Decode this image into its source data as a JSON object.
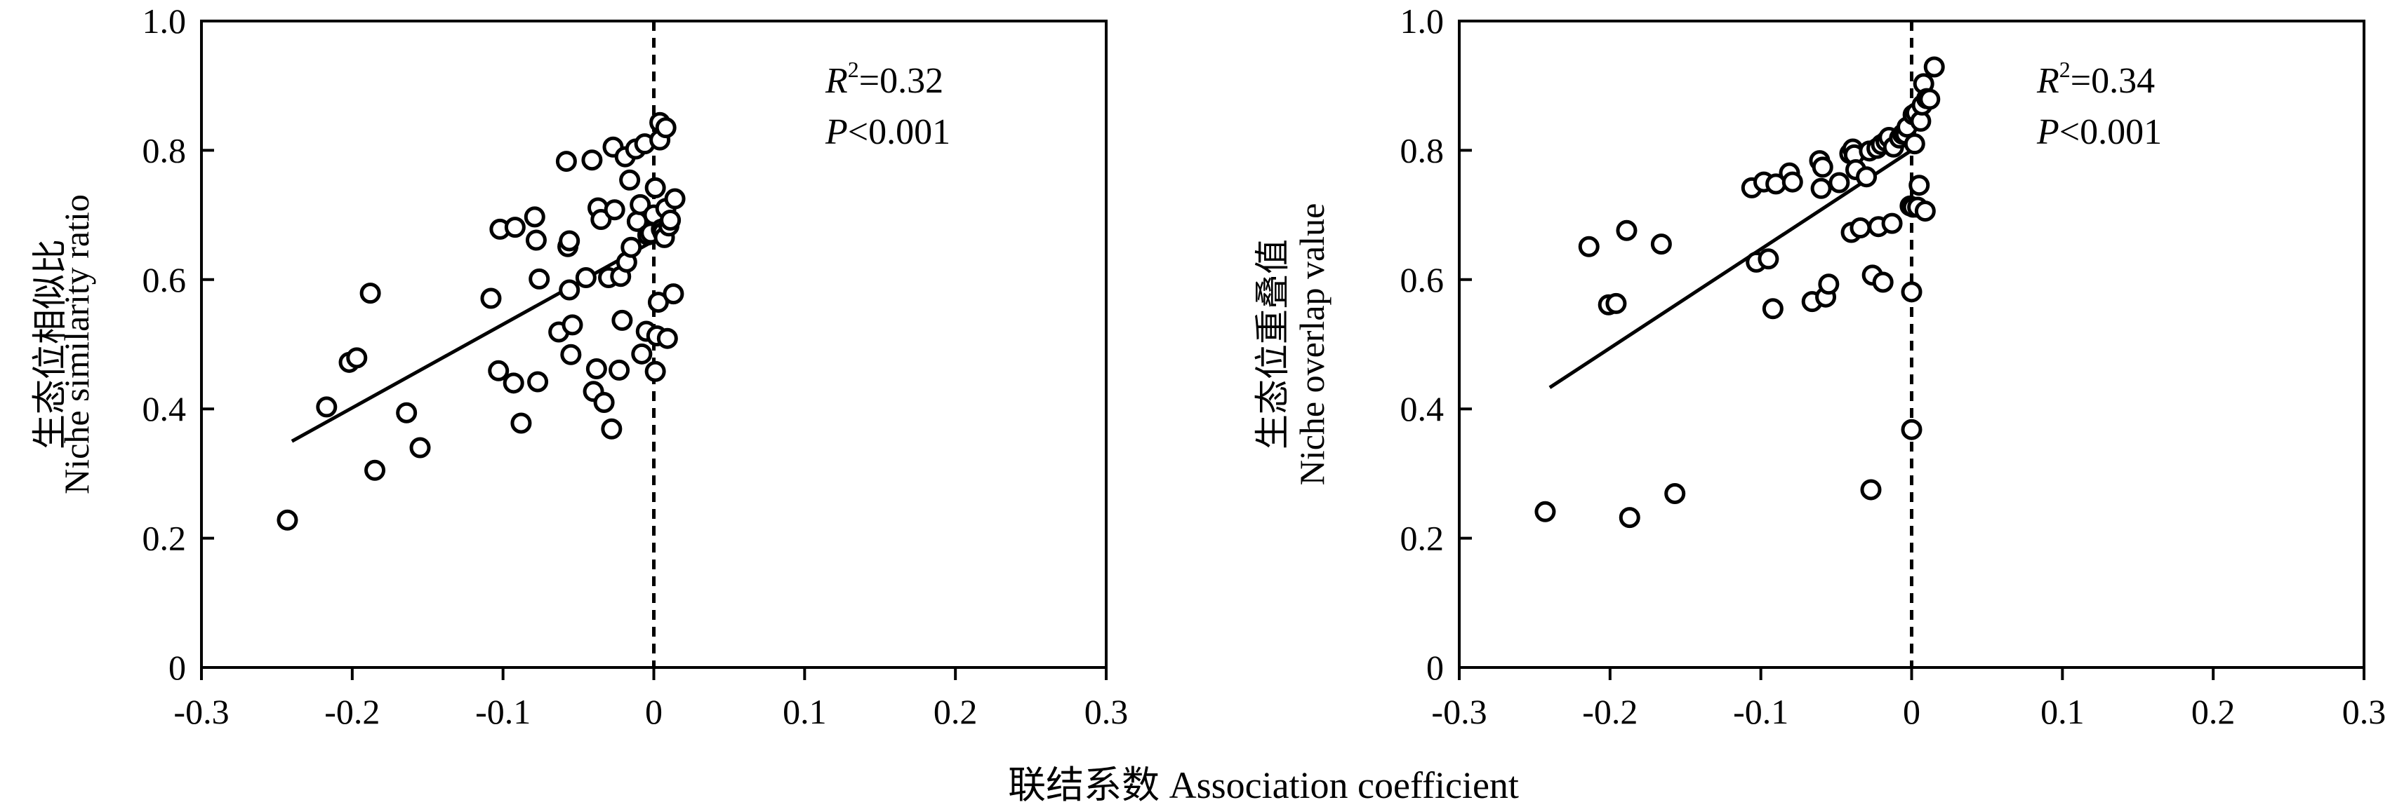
{
  "figure": {
    "xlabel": "联结系数 Association coefficient"
  },
  "chart_data": [
    {
      "type": "scatter",
      "ylabel_cn": "生态位相似比",
      "ylabel_en": "Niche similarity ratio",
      "xlim": [
        -0.3,
        0.3
      ],
      "ylim": [
        0,
        1.0
      ],
      "xticks": [
        "-0.3",
        "-0.2",
        "-0.1",
        "0",
        "0.1",
        "0.2",
        "0.3"
      ],
      "yticks": [
        "0",
        "0.2",
        "0.4",
        "0.6",
        "0.8",
        "1.0"
      ],
      "stats": {
        "r2_label": "R",
        "r2_sup": "2",
        "r2_value": "=0.32",
        "p_label": "P",
        "p_value": "<0.001"
      },
      "fit": {
        "x": [
          -0.24,
          0.0
        ],
        "y": [
          0.35,
          0.66
        ]
      },
      "points": [
        [
          -0.243,
          0.228
        ],
        [
          -0.217,
          0.403
        ],
        [
          -0.202,
          0.472
        ],
        [
          -0.197,
          0.479
        ],
        [
          -0.188,
          0.579
        ],
        [
          -0.185,
          0.305
        ],
        [
          -0.164,
          0.394
        ],
        [
          -0.155,
          0.34
        ],
        [
          -0.108,
          0.571
        ],
        [
          -0.103,
          0.459
        ],
        [
          -0.102,
          0.678
        ],
        [
          -0.093,
          0.44
        ],
        [
          -0.092,
          0.681
        ],
        [
          -0.088,
          0.378
        ],
        [
          -0.079,
          0.697
        ],
        [
          -0.078,
          0.661
        ],
        [
          -0.077,
          0.442
        ],
        [
          -0.076,
          0.601
        ],
        [
          -0.063,
          0.519
        ],
        [
          -0.058,
          0.783
        ],
        [
          -0.057,
          0.651
        ],
        [
          -0.056,
          0.66
        ],
        [
          -0.056,
          0.584
        ],
        [
          -0.055,
          0.484
        ],
        [
          -0.054,
          0.53
        ],
        [
          -0.045,
          0.603
        ],
        [
          -0.041,
          0.785
        ],
        [
          -0.04,
          0.427
        ],
        [
          -0.038,
          0.462
        ],
        [
          -0.037,
          0.711
        ],
        [
          -0.035,
          0.693
        ],
        [
          -0.033,
          0.41
        ],
        [
          -0.03,
          0.603
        ],
        [
          -0.028,
          0.369
        ],
        [
          -0.027,
          0.805
        ],
        [
          -0.026,
          0.708
        ],
        [
          -0.023,
          0.46
        ],
        [
          -0.022,
          0.605
        ],
        [
          -0.021,
          0.537
        ],
        [
          -0.019,
          0.79
        ],
        [
          -0.018,
          0.627
        ],
        [
          -0.016,
          0.754
        ],
        [
          -0.015,
          0.65
        ],
        [
          -0.012,
          0.802
        ],
        [
          -0.011,
          0.69
        ],
        [
          -0.009,
          0.716
        ],
        [
          -0.008,
          0.485
        ],
        [
          -0.006,
          0.81
        ],
        [
          -0.005,
          0.52
        ],
        [
          -0.004,
          0.669
        ],
        [
          -0.002,
          0.672
        ],
        [
          0.0,
          0.7
        ],
        [
          0.001,
          0.742
        ],
        [
          0.001,
          0.458
        ],
        [
          0.002,
          0.513
        ],
        [
          0.003,
          0.565
        ],
        [
          0.004,
          0.816
        ],
        [
          0.004,
          0.843
        ],
        [
          0.005,
          0.678
        ],
        [
          0.006,
          0.673
        ],
        [
          0.007,
          0.665
        ],
        [
          0.008,
          0.835
        ],
        [
          0.008,
          0.71
        ],
        [
          0.009,
          0.509
        ],
        [
          0.01,
          0.683
        ],
        [
          0.011,
          0.692
        ],
        [
          0.013,
          0.578
        ],
        [
          0.014,
          0.725
        ]
      ]
    },
    {
      "type": "scatter",
      "ylabel_cn": "生态位重叠值",
      "ylabel_en": "Niche overlap value",
      "xlim": [
        -0.3,
        0.3
      ],
      "ylim": [
        0,
        1.0
      ],
      "xticks": [
        "-0.3",
        "-0.2",
        "-0.1",
        "0",
        "0.1",
        "0.2",
        "0.3"
      ],
      "yticks": [
        "0",
        "0.2",
        "0.4",
        "0.6",
        "0.8",
        "1.0"
      ],
      "stats": {
        "r2_label": "R",
        "r2_sup": "2",
        "r2_value": "=0.34",
        "p_label": "P",
        "p_value": "<0.001"
      },
      "fit": {
        "x": [
          -0.24,
          0.0
        ],
        "y": [
          0.433,
          0.8
        ]
      },
      "points": [
        [
          -0.243,
          0.241
        ],
        [
          -0.214,
          0.651
        ],
        [
          -0.201,
          0.561
        ],
        [
          -0.196,
          0.563
        ],
        [
          -0.189,
          0.676
        ],
        [
          -0.187,
          0.232
        ],
        [
          -0.166,
          0.655
        ],
        [
          -0.157,
          0.269
        ],
        [
          -0.106,
          0.742
        ],
        [
          -0.103,
          0.627
        ],
        [
          -0.098,
          0.751
        ],
        [
          -0.095,
          0.632
        ],
        [
          -0.092,
          0.555
        ],
        [
          -0.09,
          0.748
        ],
        [
          -0.081,
          0.765
        ],
        [
          -0.079,
          0.751
        ],
        [
          -0.066,
          0.566
        ],
        [
          -0.061,
          0.784
        ],
        [
          -0.06,
          0.741
        ],
        [
          -0.059,
          0.774
        ],
        [
          -0.057,
          0.573
        ],
        [
          -0.055,
          0.593
        ],
        [
          -0.048,
          0.75
        ],
        [
          -0.041,
          0.795
        ],
        [
          -0.04,
          0.673
        ],
        [
          -0.039,
          0.802
        ],
        [
          -0.038,
          0.793
        ],
        [
          -0.037,
          0.77
        ],
        [
          -0.034,
          0.68
        ],
        [
          -0.03,
          0.759
        ],
        [
          -0.028,
          0.799
        ],
        [
          -0.027,
          0.275
        ],
        [
          -0.026,
          0.607
        ],
        [
          -0.023,
          0.803
        ],
        [
          -0.022,
          0.682
        ],
        [
          -0.02,
          0.809
        ],
        [
          -0.019,
          0.596
        ],
        [
          -0.017,
          0.814
        ],
        [
          -0.015,
          0.82
        ],
        [
          -0.013,
          0.687
        ],
        [
          -0.012,
          0.805
        ],
        [
          -0.008,
          0.819
        ],
        [
          -0.006,
          0.825
        ],
        [
          -0.004,
          0.825
        ],
        [
          -0.003,
          0.836
        ],
        [
          -0.001,
          0.714
        ],
        [
          0.0,
          0.368
        ],
        [
          0.0,
          0.581
        ],
        [
          0.001,
          0.712
        ],
        [
          0.001,
          0.855
        ],
        [
          0.002,
          0.81
        ],
        [
          0.003,
          0.858
        ],
        [
          0.004,
          0.712
        ],
        [
          0.005,
          0.746
        ],
        [
          0.006,
          0.845
        ],
        [
          0.007,
          0.87
        ],
        [
          0.008,
          0.903
        ],
        [
          0.009,
          0.706
        ],
        [
          0.01,
          0.88
        ],
        [
          0.012,
          0.879
        ],
        [
          0.015,
          0.929
        ]
      ]
    }
  ]
}
